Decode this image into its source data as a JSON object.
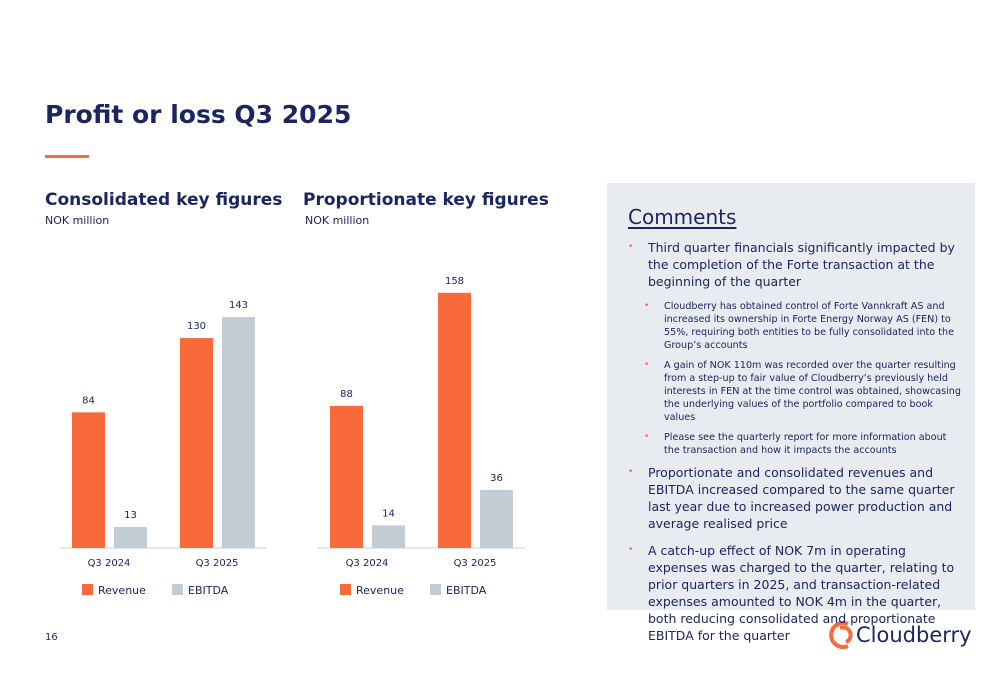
{
  "slide": {
    "title": "Profit or loss Q3 2025",
    "page_number": "16",
    "logo": "Cloudberry"
  },
  "chart_data": [
    {
      "type": "bar",
      "title": "Consolidated key figures",
      "subtitle": "NOK million",
      "categories": [
        "Q3 2024",
        "Q3 2025"
      ],
      "series": [
        {
          "name": "Revenue",
          "color": "#f86a3a",
          "values": [
            84,
            130
          ]
        },
        {
          "name": "EBITDA",
          "color": "#c2ccd5",
          "values": [
            13,
            143
          ]
        }
      ]
    },
    {
      "type": "bar",
      "title": "Proportionate key figures",
      "subtitle": "NOK million",
      "categories": [
        "Q3 2024",
        "Q3 2025"
      ],
      "series": [
        {
          "name": "Revenue",
          "color": "#f86a3a",
          "values": [
            88,
            158
          ]
        },
        {
          "name": "EBITDA",
          "color": "#c2ccd5",
          "values": [
            14,
            36
          ]
        }
      ]
    }
  ],
  "comments": {
    "title": "Comments",
    "items": [
      {
        "text": "Third quarter financials significantly impacted by the completion of the Forte transaction at the beginning of the quarter",
        "subitems": [
          "Cloudberry has obtained control of Forte Vannkraft AS and increased its ownership in Forte Energy Norway AS (FEN) to 55%, requiring both entities to be fully consolidated into the Group’s accounts",
          "A gain of NOK 110m was recorded over the quarter resulting from a step-up to fair value of Cloudberry’s previously held interests in FEN at the time control was obtained, showcasing the underlying values of the portfolio compared to book values",
          "Please see the quarterly report for more information about the transaction and how it impacts the accounts"
        ]
      },
      {
        "text": "Proportionate and consolidated revenues and EBITDA increased  compared to the same quarter last year due to increased power production and average realised price",
        "subitems": []
      },
      {
        "text": "A catch-up effect of NOK 7m in operating expenses was charged to the quarter, relating to prior quarters in 2025, and transaction-related expenses amounted to NOK 4m in the quarter, both reducing consolidated and proportionate EBITDA for the quarter",
        "subitems": []
      }
    ]
  }
}
